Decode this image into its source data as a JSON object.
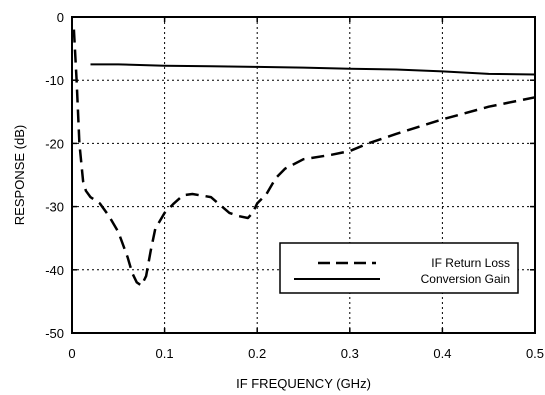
{
  "chart_data": {
    "type": "line",
    "xlabel": "IF FREQUENCY (GHz)",
    "ylabel": "RESPONSE (dB)",
    "xlim": [
      0,
      0.5
    ],
    "ylim": [
      -50,
      0
    ],
    "x_ticks": [
      "0",
      "0.1",
      "0.2",
      "0.3",
      "0.4",
      "0.5"
    ],
    "y_ticks": [
      "0",
      "-10",
      "-20",
      "-30",
      "-40",
      "-50"
    ],
    "grid": "dotted",
    "legend_position": "lower-right",
    "series": [
      {
        "name": "IF Return Loss",
        "style": "dashed",
        "x": [
          0.002,
          0.005,
          0.008,
          0.012,
          0.015,
          0.02,
          0.03,
          0.04,
          0.05,
          0.06,
          0.065,
          0.07,
          0.075,
          0.08,
          0.085,
          0.09,
          0.1,
          0.11,
          0.12,
          0.13,
          0.15,
          0.17,
          0.18,
          0.19,
          0.195,
          0.2,
          0.21,
          0.22,
          0.23,
          0.25,
          0.28,
          0.3,
          0.32,
          0.35,
          0.4,
          0.45,
          0.5
        ],
        "y": [
          -2,
          -10,
          -20,
          -26,
          -27.5,
          -28.5,
          -29.5,
          -31.5,
          -34,
          -38,
          -40.5,
          -42,
          -42.5,
          -41,
          -37,
          -33.5,
          -31,
          -29.5,
          -28.2,
          -28,
          -28.5,
          -31,
          -31.5,
          -31.8,
          -31,
          -29.5,
          -28,
          -25.5,
          -24,
          -22.5,
          -21.8,
          -21.2,
          -20,
          -18.5,
          -16.2,
          -14.2,
          -12.7
        ]
      },
      {
        "name": "Conversion Gain",
        "style": "solid",
        "x": [
          0.02,
          0.05,
          0.1,
          0.15,
          0.2,
          0.25,
          0.3,
          0.35,
          0.4,
          0.45,
          0.5
        ],
        "y": [
          -7.5,
          -7.5,
          -7.7,
          -7.8,
          -7.9,
          -8.0,
          -8.2,
          -8.3,
          -8.6,
          -9.0,
          -9.1
        ]
      }
    ]
  }
}
